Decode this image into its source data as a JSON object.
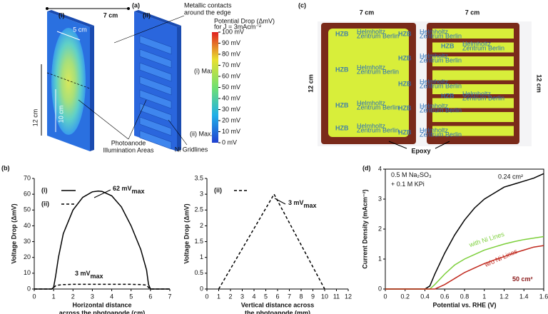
{
  "panel_labels": {
    "a": "(a)",
    "b": "(b)",
    "c": "(c)",
    "d": "(d)"
  },
  "panel_a": {
    "sub_labels": [
      "(i)",
      "(ii)"
    ],
    "width": "7 cm",
    "inner_width": "5 cm",
    "inner_height": "10 cm",
    "height": "12 cm",
    "contacts": [
      "Metallic contacts",
      "around the edge"
    ],
    "illumination": [
      "Photoanode",
      "Illumination Areas"
    ],
    "gridlines": "Ni Gridlines",
    "max_i": "(i) Max.",
    "max_ii": "(ii) Max.",
    "colorbar": {
      "title": [
        "Potential Drop (ΔmV)",
        "for J = 3mAcm⁻²"
      ],
      "lim": [
        0,
        100
      ],
      "ticks": [
        {
          "value": 0,
          "label": "0 mV"
        },
        {
          "value": 10,
          "label": "10 mV"
        },
        {
          "value": 20,
          "label": "20 mV"
        },
        {
          "value": 30,
          "label": "30 mV"
        },
        {
          "value": 40,
          "label": "40 mV"
        },
        {
          "value": 50,
          "label": "50 mV"
        },
        {
          "value": 60,
          "label": "60 mV"
        },
        {
          "value": 70,
          "label": "70 mV"
        },
        {
          "value": 80,
          "label": "80 mV"
        },
        {
          "value": 90,
          "label": "90 mV"
        },
        {
          "value": 100,
          "label": "100 mV"
        }
      ]
    }
  },
  "panel_c": {
    "widths": [
      "7 cm",
      "7 cm"
    ],
    "heights": [
      "12 cm",
      "12 cm"
    ],
    "epoxy": "Epoxy",
    "logo": "HZB",
    "logo_sub": [
      "Helmholtz",
      "Zentrum Berlin"
    ]
  },
  "chart_data": [
    {
      "type": "line",
      "xlabel": [
        "Horizontal distance",
        "across the photoanode (cm)"
      ],
      "ylabel": "Voltage Drop (ΔmV)",
      "xlim": [
        0,
        7
      ],
      "ylim": [
        0,
        70
      ],
      "xticks": [
        0,
        1,
        2,
        3,
        4,
        5,
        6,
        7
      ],
      "yticks": [
        0,
        10,
        20,
        30,
        40,
        50,
        60,
        70
      ],
      "x": [
        0,
        0.5,
        0.9,
        1,
        1.1,
        1.25,
        1.5,
        2,
        2.5,
        3,
        3.3,
        3.5,
        4,
        4.5,
        5,
        5.5,
        5.8,
        5.9,
        6,
        6.5,
        7
      ],
      "series": [
        {
          "name": "(i)",
          "color": "#000000",
          "dash": false,
          "values": [
            0,
            0,
            0,
            1,
            8,
            20,
            35,
            50,
            58,
            61.5,
            62,
            61.8,
            59,
            52,
            40,
            25,
            12,
            3,
            0,
            0,
            0
          ]
        },
        {
          "name": "(ii)",
          "color": "#000000",
          "dash": true,
          "values": [
            0,
            0,
            0,
            1,
            2,
            2.5,
            2.8,
            3,
            3,
            3,
            3,
            3,
            3,
            3,
            3,
            2.8,
            2.5,
            1,
            0,
            0,
            0
          ]
        }
      ],
      "annotations": [
        {
          "text": "62 mV",
          "sub": "max"
        },
        {
          "text": "3 mV",
          "sub": "max"
        }
      ]
    },
    {
      "type": "line",
      "xlabel": [
        "Vertical distance across",
        "the photoanode (mm)"
      ],
      "ylabel": "Voltage Drop (ΔmV)",
      "xlim": [
        0,
        12
      ],
      "ylim": [
        0,
        3.5
      ],
      "xticks": [
        0,
        1,
        2,
        3,
        4,
        5,
        6,
        7,
        8,
        9,
        10,
        11,
        12
      ],
      "yticks": [
        0,
        0.5,
        1,
        1.5,
        2,
        2.5,
        3,
        3.5
      ],
      "x": [
        1,
        5.7,
        10
      ],
      "series": [
        {
          "name": "(ii)",
          "color": "#000000",
          "dash": true,
          "values": [
            0,
            3,
            0
          ]
        }
      ],
      "annotations": [
        {
          "text": "3 mV",
          "sub": "max"
        }
      ]
    },
    {
      "type": "line",
      "xlabel": [
        "Potential vs. RHE (V)"
      ],
      "ylabel": "Current Density (mAcm⁻²)",
      "xlim": [
        0,
        1.6
      ],
      "ylim": [
        0,
        4
      ],
      "xticks": [
        0,
        0.2,
        0.4,
        0.6,
        0.8,
        1,
        1.2,
        1.4,
        1.6
      ],
      "yticks": [
        0,
        1,
        2,
        3,
        4
      ],
      "x": [
        0,
        0.1,
        0.2,
        0.3,
        0.4,
        0.45,
        0.5,
        0.6,
        0.7,
        0.8,
        0.9,
        1,
        1.1,
        1.2,
        1.3,
        1.4,
        1.5,
        1.6
      ],
      "series": [
        {
          "name": "0.24 cm²",
          "color": "#000000",
          "dash": false,
          "values": [
            0,
            0,
            0,
            0,
            0,
            0.1,
            0.5,
            1.2,
            1.8,
            2.3,
            2.7,
            3,
            3.2,
            3.4,
            3.5,
            3.6,
            3.7,
            3.85
          ]
        },
        {
          "name": "with Ni Lines",
          "color": "#7ccf3a",
          "dash": false,
          "values": [
            0,
            0,
            0,
            0,
            0,
            0,
            0.15,
            0.5,
            0.8,
            1,
            1.15,
            1.3,
            1.4,
            1.5,
            1.58,
            1.65,
            1.7,
            1.75
          ]
        },
        {
          "name": "w/o Ni Lines",
          "color": "#c0281d",
          "dash": false,
          "values": [
            0,
            0,
            0,
            0,
            0,
            0,
            0,
            0.15,
            0.35,
            0.55,
            0.7,
            0.85,
            0.97,
            1.08,
            1.2,
            1.3,
            1.4,
            1.45
          ]
        }
      ],
      "annotations": [
        {
          "text": "0.5 M Na₂SO₃"
        },
        {
          "text": "+ 0.1 M KPi"
        },
        {
          "text": "50 cm²",
          "color": "#8b1a1a"
        }
      ]
    }
  ]
}
